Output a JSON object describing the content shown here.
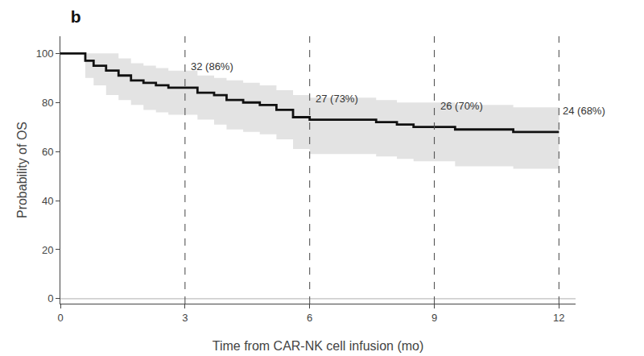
{
  "chart_data": {
    "type": "step",
    "title": "b",
    "xlabel": "Time from CAR-NK cell infusion (mo)",
    "ylabel": "Probability of OS",
    "x": [
      0,
      0.4,
      0.6,
      0.8,
      1.1,
      1.4,
      1.7,
      2.0,
      2.3,
      2.6,
      3.0,
      3.3,
      3.7,
      4.0,
      4.4,
      4.8,
      5.2,
      5.6,
      6.0,
      6.5,
      7.1,
      7.6,
      8.1,
      8.5,
      9.0,
      9.5,
      9.9,
      10.4,
      10.9,
      11.5,
      12.0
    ],
    "values": [
      100,
      100,
      97,
      95,
      93,
      91,
      89,
      88,
      87,
      86,
      86,
      84,
      83,
      81,
      80,
      79,
      77,
      74,
      73,
      73,
      73,
      72,
      71,
      70,
      70,
      69,
      69,
      69,
      68,
      68,
      68
    ],
    "color": "#111111",
    "band": {
      "upper": [
        100,
        100,
        100,
        100,
        100,
        98,
        96,
        95,
        94,
        93,
        93,
        91,
        90,
        89,
        88,
        87,
        85,
        83,
        82,
        82,
        82,
        81,
        80,
        80,
        80,
        79,
        79,
        79,
        78,
        78,
        78
      ],
      "lower": [
        100,
        100,
        90,
        87,
        83,
        81,
        79,
        77,
        76,
        75,
        75,
        73,
        71,
        69,
        68,
        67,
        65,
        61,
        59,
        59,
        59,
        58,
        57,
        56,
        56,
        54,
        54,
        54,
        53,
        53,
        53
      ],
      "color": "#cccccc"
    },
    "vlines": [
      3,
      6,
      9,
      12
    ],
    "hlines": [
      0
    ],
    "annotations": [
      {
        "x": 3.1,
        "y": 91.5,
        "text": "32 (86%)"
      },
      {
        "x": 6.1,
        "y": 78.5,
        "text": "27 (73%)"
      },
      {
        "x": 9.1,
        "y": 75.5,
        "text": "26 (70%)"
      },
      {
        "x": 12.05,
        "y": 73.5,
        "text": "24 (68%)"
      }
    ],
    "xlim": [
      0,
      12.4
    ],
    "ylim": [
      -2,
      107
    ],
    "xticks": [
      0,
      3,
      6,
      9,
      12
    ],
    "yticks": [
      0,
      20,
      40,
      60,
      80,
      100
    ],
    "grid": false
  }
}
